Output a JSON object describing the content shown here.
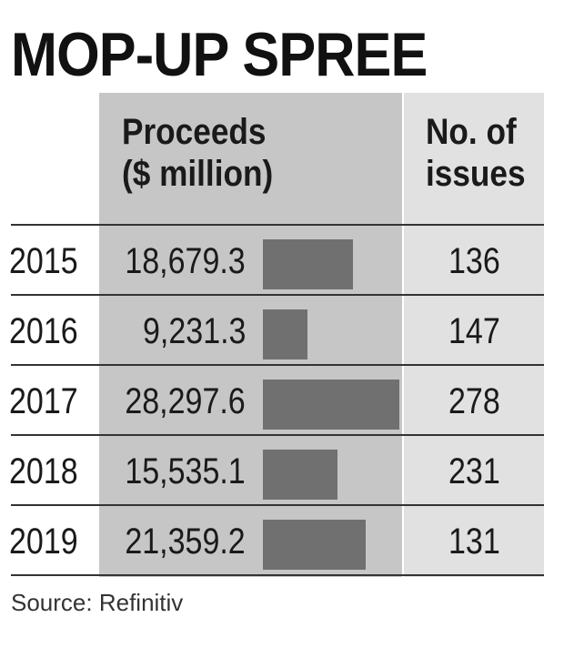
{
  "chart_data": {
    "type": "table",
    "title": "MOP-UP SPREE",
    "columns": {
      "proceeds_header_line1": "Proceeds",
      "proceeds_header_line2": "($ million)",
      "issues_header_line1": "No. of",
      "issues_header_line2": "issues"
    },
    "rows": [
      {
        "year": "2015",
        "proceeds_label": "18,679.3",
        "proceeds": 18679.3,
        "issues": "136"
      },
      {
        "year": "2016",
        "proceeds_label": "9,231.3",
        "proceeds": 9231.3,
        "issues": "147"
      },
      {
        "year": "2017",
        "proceeds_label": "28,297.6",
        "proceeds": 28297.6,
        "issues": "278"
      },
      {
        "year": "2018",
        "proceeds_label": "15,535.1",
        "proceeds": 15535.1,
        "issues": "231"
      },
      {
        "year": "2019",
        "proceeds_label": "21,359.2",
        "proceeds": 21359.2,
        "issues": "131"
      }
    ],
    "source": "Source: Refinitiv",
    "colors": {
      "proceeds_column_bg": "#c6c6c6",
      "issues_column_bg": "#e1e1e1",
      "bar": "#707070"
    }
  }
}
